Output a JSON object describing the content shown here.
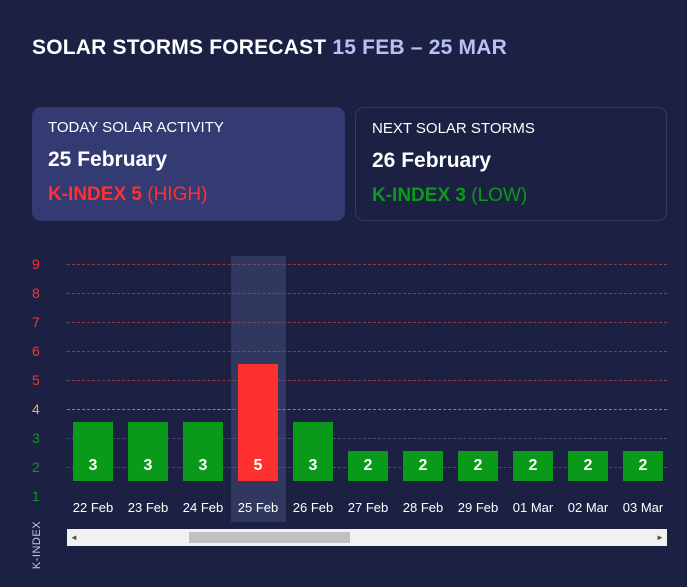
{
  "header": {
    "title": "SOLAR STORMS FORECAST",
    "range": "15 FEB – 25 MAR"
  },
  "today_card": {
    "label": "TODAY SOLAR ACTIVITY",
    "date": "25 February",
    "kindex_strong": "K-INDEX 5",
    "kindex_level": "(HIGH)",
    "color": "#ff3030"
  },
  "next_card": {
    "label": "NEXT SOLAR STORMS",
    "date": "26 February",
    "kindex_strong": "K-INDEX 3",
    "kindex_level": "(LOW)",
    "color": "#0a9a1a"
  },
  "colors": {
    "background": "#1c2143",
    "low": "#0a9a1a",
    "moderate": "#e9b24a",
    "high": "#ff3030",
    "highlight": "rgba(90,100,150,0.35)"
  },
  "chart_data": {
    "type": "bar",
    "ylabel": "K-INDEX",
    "ylim": [
      1,
      9
    ],
    "yticks": [
      {
        "label": "9",
        "value": 9,
        "color": "#ff3030"
      },
      {
        "label": "8",
        "value": 8,
        "color": "#ff3030"
      },
      {
        "label": "7",
        "value": 7,
        "color": "#ff3030"
      },
      {
        "label": "6",
        "value": 6,
        "color": "#ff3030"
      },
      {
        "label": "5",
        "value": 5,
        "color": "#ff3030"
      },
      {
        "label": "4",
        "value": 4,
        "color": "#e9b24a"
      },
      {
        "label": "3",
        "value": 3,
        "color": "#0a9a1a"
      },
      {
        "label": "2",
        "value": 2,
        "color": "#0a9a1a"
      },
      {
        "label": "1",
        "value": 1,
        "color": "#0a9a1a"
      }
    ],
    "categories": [
      "22 Feb",
      "23 Feb",
      "24 Feb",
      "25 Feb",
      "26 Feb",
      "27 Feb",
      "28 Feb",
      "29 Feb",
      "01 Mar",
      "02 Mar",
      "03 Mar"
    ],
    "values": [
      3,
      3,
      3,
      5,
      3,
      2,
      2,
      2,
      2,
      2,
      2
    ],
    "highlighted_category": "25 Feb",
    "grid": true
  },
  "scrollbar": {
    "left_arrow": "◄",
    "right_arrow": "►",
    "position": 0.2
  }
}
